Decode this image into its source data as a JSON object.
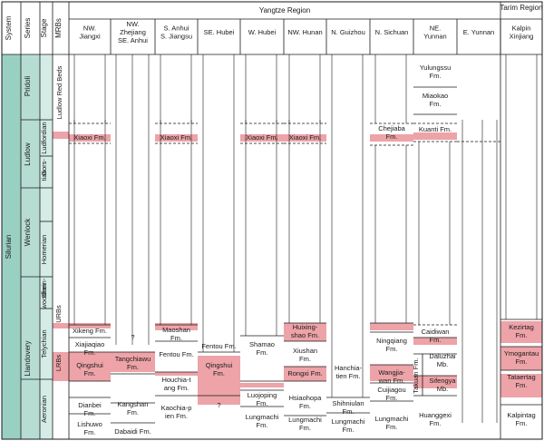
{
  "colors": {
    "silurian": "#9ad0c2",
    "series": "#b7ddd3",
    "stage": "#d4ece5",
    "pink": "#eda3a8",
    "line": "#1a1a1a",
    "header_bg": "#ffffff"
  },
  "header": {
    "system": "System",
    "series": "Series",
    "stage": "Stage",
    "mrbs": "MRBs",
    "yangtze": "Yangtze Region",
    "tarim": "Tarim Region"
  },
  "regions": [
    {
      "key": "nw_jiangxi",
      "lines": [
        "NW.",
        "Jiangxi"
      ]
    },
    {
      "key": "nw_zhejiang",
      "lines": [
        "NW.",
        "Zhejiang",
        "SE. Anhui"
      ]
    },
    {
      "key": "s_anhui",
      "lines": [
        "S. Anhui",
        "S. Jiangsu"
      ]
    },
    {
      "key": "se_hubei",
      "lines": [
        "SE. Hubei"
      ]
    },
    {
      "key": "w_hubei",
      "lines": [
        "W. Hubei"
      ]
    },
    {
      "key": "nw_hunan",
      "lines": [
        "NW. Hunan"
      ]
    },
    {
      "key": "n_guizhou",
      "lines": [
        "N. Guizhou"
      ]
    },
    {
      "key": "n_sichuan",
      "lines": [
        "N. Sichuan"
      ]
    },
    {
      "key": "ne_yunnan",
      "lines": [
        "NE.",
        "Yunnan"
      ]
    },
    {
      "key": "e_yunnan",
      "lines": [
        "E. Yunnan"
      ]
    },
    {
      "key": "kalpin",
      "lines": [
        "Kalpin",
        "Xinjiang"
      ]
    }
  ],
  "system_name": "Silurian",
  "series": [
    {
      "name": "Pridoli"
    },
    {
      "name": "Ludlow"
    },
    {
      "name": "Wenlock"
    },
    {
      "name": "Llandovery"
    }
  ],
  "stages": [
    {
      "lines": [
        "Ludfordian"
      ]
    },
    {
      "lines": [
        "Gors-",
        "tian"
      ]
    },
    {
      "lines": [
        "Homerian"
      ]
    },
    {
      "lines": [
        "Shein-",
        "woodian"
      ]
    },
    {
      "lines": [
        "Telychian"
      ]
    },
    {
      "lines": [
        "Aeronian"
      ]
    }
  ],
  "mrbs_labels": {
    "ludlow": "Ludlow Red Beds",
    "urbs": "URBs",
    "lrbs": "LRBs"
  },
  "formations": {
    "nw_jiangxi": [
      {
        "name": "Xiaoxi Fm."
      },
      {
        "name": "Xikeng Fm."
      },
      {
        "name": "Xiajiaqiao Fm."
      },
      {
        "name": "Qingshui Fm."
      },
      {
        "name": "Dianbei Fm."
      },
      {
        "name": "Lishuwo Fm."
      }
    ],
    "nw_zhejiang": [
      {
        "name": "?"
      },
      {
        "name": "Tangchiawu Fm."
      },
      {
        "name": "Kangshan Fm."
      },
      {
        "name": "Dabaidi Fm."
      }
    ],
    "s_anhui": [
      {
        "name": "Xiaoxi Fm."
      },
      {
        "name": "Maoshan Fm."
      },
      {
        "name": "Fentou Fm."
      },
      {
        "name": "Houchia-tang Fm."
      },
      {
        "name": "Kaochia-pien Fm."
      }
    ],
    "se_hubei": [
      {
        "name": "Fentou Fm."
      },
      {
        "name": "Qingshui Fm."
      },
      {
        "name": "?"
      }
    ],
    "w_hubei": [
      {
        "name": "Xiaoxi Fm."
      },
      {
        "name": "Shamao Fm."
      },
      {
        "name": "Luojoping Fm."
      },
      {
        "name": "Lungmachi Fm."
      }
    ],
    "nw_hunan": [
      {
        "name": "Xiaoxi Fm."
      },
      {
        "name": "Huixing-shao Fm."
      },
      {
        "name": "Xiushan Fm."
      },
      {
        "name": "Rongxi Fm."
      },
      {
        "name": "Hsiaohopa Fm."
      },
      {
        "name": "Lungmachi Fm."
      }
    ],
    "n_guizhou": [
      {
        "name": "Hanchia-tien Fm."
      },
      {
        "name": "Shihniulan Fm."
      },
      {
        "name": "Lungmachi Fm."
      }
    ],
    "n_sichuan": [
      {
        "name": "Chejiaba Fm."
      },
      {
        "name": "Ningqiang Fm."
      },
      {
        "name": "Wangjia-wan Fm."
      },
      {
        "name": "Cuijiagou Fm."
      },
      {
        "name": "Lungmachi Fm."
      }
    ],
    "ne_yunnan": [
      {
        "name": "Yulungssu Fm."
      },
      {
        "name": "Miaokao Fm."
      },
      {
        "name": "Kuanti Fm."
      },
      {
        "name": "Caidiwan Fm."
      },
      {
        "name": "Takuan Fm."
      },
      {
        "name": "Daluzhai Mb."
      },
      {
        "name": "Sifengya Mb."
      },
      {
        "name": "Huanggexi Fm."
      }
    ],
    "kalpin": [
      {
        "name": "Kezirtag Fm."
      },
      {
        "name": "Ymogantau Fm."
      },
      {
        "name": "Tataertag Fm."
      },
      {
        "name": "Kalpintag Fm."
      }
    ]
  }
}
